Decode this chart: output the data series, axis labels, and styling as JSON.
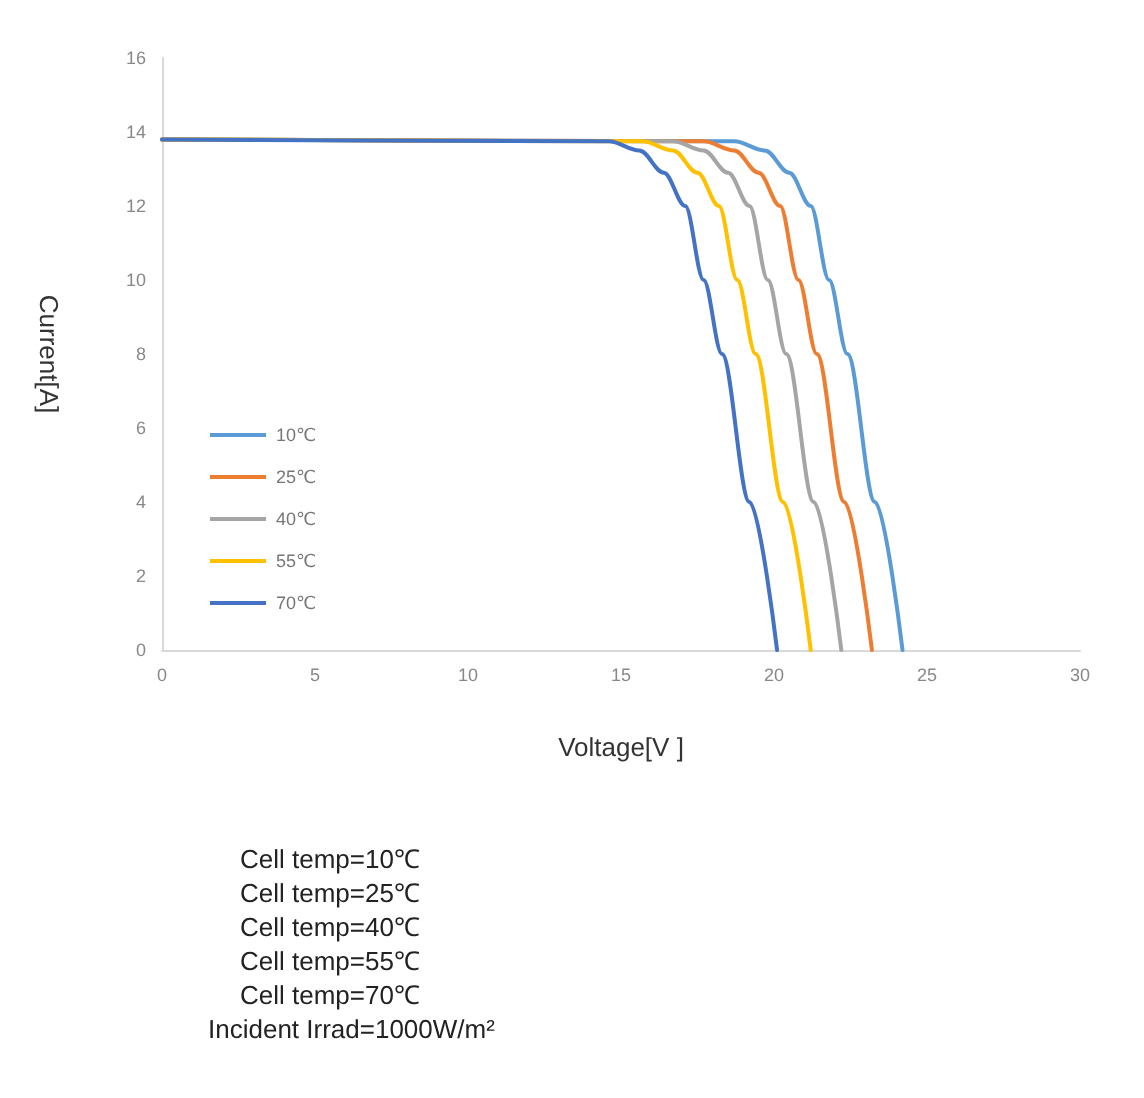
{
  "chart_data": {
    "type": "line",
    "xlabel": "Voltage[V ]",
    "ylabel": "Current[A]",
    "xlim": [
      0,
      30
    ],
    "xticks": [
      0,
      5,
      10,
      15,
      20,
      25,
      30
    ],
    "ylim": [
      0,
      16
    ],
    "yticks": [
      0,
      2,
      4,
      6,
      8,
      10,
      12,
      14,
      16
    ],
    "grid": false,
    "legend": "left",
    "marker": "none",
    "line_style": "solid",
    "series": [
      {
        "name": "10℃",
        "color": "#5b9bd5",
        "x": [
          0,
          18.7,
          19.7,
          20.5,
          21.2,
          21.8,
          22.4,
          23.3,
          24.2
        ],
        "values": [
          13.8,
          13.75,
          13.5,
          12.9,
          12,
          10,
          8,
          4,
          0
        ]
      },
      {
        "name": "25℃",
        "color": "#ed7d31",
        "x": [
          0,
          17.7,
          18.7,
          19.5,
          20.2,
          20.8,
          21.4,
          22.3,
          23.2
        ],
        "values": [
          13.8,
          13.75,
          13.5,
          12.9,
          12,
          10,
          8,
          4,
          0
        ]
      },
      {
        "name": "40℃",
        "color": "#a5a5a5",
        "x": [
          0,
          16.7,
          17.7,
          18.5,
          19.2,
          19.8,
          20.4,
          21.3,
          22.2
        ],
        "values": [
          13.8,
          13.75,
          13.5,
          12.9,
          12,
          10,
          8,
          4,
          0
        ]
      },
      {
        "name": "55℃",
        "color": "#ffc000",
        "x": [
          0,
          15.7,
          16.7,
          17.5,
          18.2,
          18.8,
          19.4,
          20.3,
          21.2
        ],
        "values": [
          13.8,
          13.75,
          13.5,
          12.9,
          12,
          10,
          8,
          4,
          0
        ]
      },
      {
        "name": "70℃",
        "color": "#4472c4",
        "x": [
          0,
          14.6,
          15.6,
          16.4,
          17.1,
          17.7,
          18.3,
          19.2,
          20.1
        ],
        "values": [
          13.8,
          13.75,
          13.5,
          12.9,
          12,
          10,
          8,
          4,
          0
        ]
      }
    ],
    "annotations": [
      "Cell temp=10℃",
      "Cell temp=25℃",
      "Cell temp=40℃",
      "Cell temp=55℃",
      "Cell temp=70℃",
      "Incident Irrad=1000W/m²"
    ]
  }
}
